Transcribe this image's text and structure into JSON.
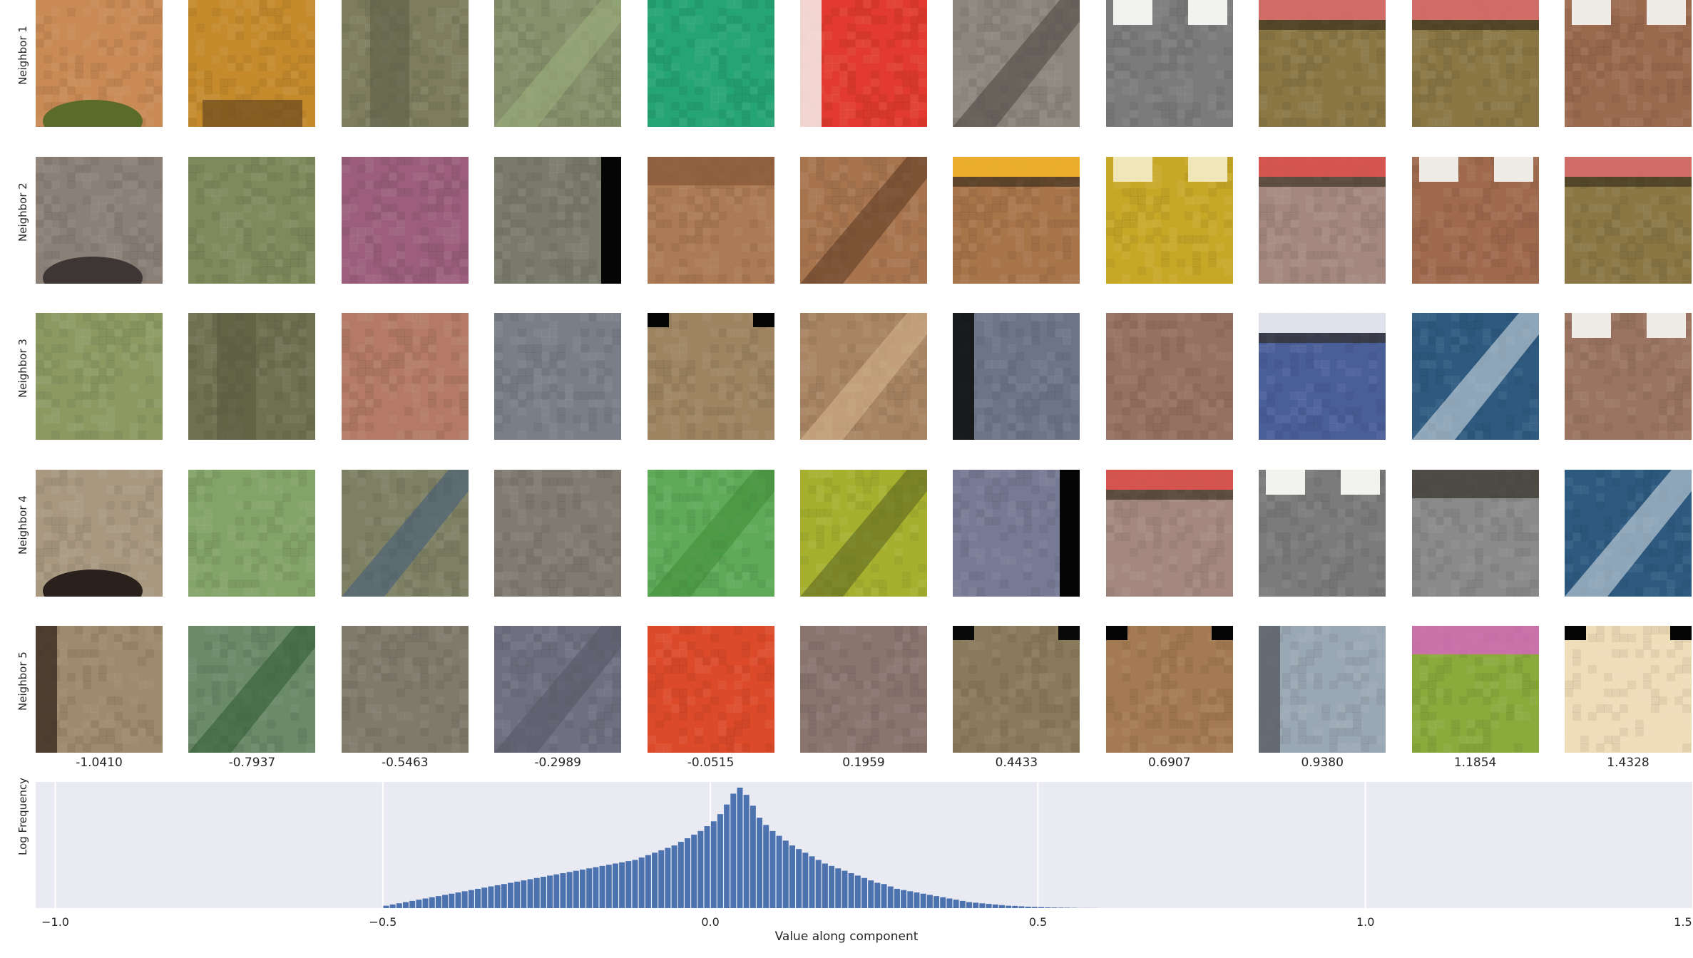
{
  "chart_data": [
    {
      "type": "image-grid",
      "row_labels": [
        "Neighbor 1",
        "Neighbor 2",
        "Neighbor 3",
        "Neighbor 4",
        "Neighbor 5"
      ],
      "column_values": [
        "-1.0410",
        "-0.7937",
        "-0.5463",
        "-0.2989",
        "-0.0515",
        "0.1959",
        "0.4433",
        "0.6907",
        "0.9380",
        "1.1854",
        "1.4328"
      ],
      "patches": [
        [
          {
            "bg": "#c98a55",
            "accent": "#5a6b2a",
            "pattern": "bottom-blob"
          },
          {
            "bg": "#c48a2c",
            "accent": "#6b4a20",
            "pattern": "bottom-band"
          },
          {
            "bg": "#7d7d5e",
            "accent": "#5f5f48",
            "pattern": "vertical"
          },
          {
            "bg": "#86906a",
            "accent": "#9ab07c",
            "pattern": "diagonal"
          },
          {
            "bg": "#25a475",
            "accent": "#1e9068",
            "pattern": "plain"
          },
          {
            "bg": "#e23a2e",
            "accent": "#f6f1ee",
            "pattern": "left-band"
          },
          {
            "bg": "#8c857c",
            "accent": "#4a4540",
            "pattern": "diagonal"
          },
          {
            "bg": "#7b7b7b",
            "accent": "#f2f2ee",
            "pattern": "top-blocks"
          },
          {
            "bg": "#8b7744",
            "accent": "#d86b6b",
            "pattern": "top-stripe"
          },
          {
            "bg": "#8b7744",
            "accent": "#d86b6b",
            "pattern": "top-stripe"
          },
          {
            "bg": "#9a6a4e",
            "accent": "#efece8",
            "pattern": "top-blocks"
          }
        ],
        [
          {
            "bg": "#8b8078",
            "accent": "#3e3634",
            "pattern": "bottom-blob"
          },
          {
            "bg": "#7f8a5c",
            "accent": "#e3e3d0",
            "pattern": "plain"
          },
          {
            "bg": "#9c5e7c",
            "accent": "#b0607e",
            "pattern": "plain"
          },
          {
            "bg": "#7a7a6c",
            "accent": "#050505",
            "pattern": "right-bar"
          },
          {
            "bg": "#ac7a54",
            "accent": "#8b5a3a",
            "pattern": "top-band"
          },
          {
            "bg": "#a8744e",
            "accent": "#5a3822",
            "pattern": "diagonal"
          },
          {
            "bg": "#a8744a",
            "accent": "#f2b428",
            "pattern": "top-stripe"
          },
          {
            "bg": "#c7a826",
            "accent": "#efe7b8",
            "pattern": "top-blocks"
          },
          {
            "bg": "#a48880",
            "accent": "#d9504a",
            "pattern": "top-stripe"
          },
          {
            "bg": "#a06a4e",
            "accent": "#efece8",
            "pattern": "top-blocks"
          },
          {
            "bg": "#8b7744",
            "accent": "#d86b6b",
            "pattern": "top-stripe"
          }
        ],
        [
          {
            "bg": "#8c9a62",
            "accent": "#9aa870",
            "pattern": "plain"
          },
          {
            "bg": "#6e7050",
            "accent": "#5a5c40",
            "pattern": "vertical"
          },
          {
            "bg": "#b47a66",
            "accent": "#9e6050",
            "pattern": "plain"
          },
          {
            "bg": "#7a7e88",
            "accent": "#8e929c",
            "pattern": "plain"
          },
          {
            "bg": "#9e8460",
            "accent": "#050505",
            "pattern": "corner-black"
          },
          {
            "bg": "#a88462",
            "accent": "#d8b890",
            "pattern": "diagonal"
          },
          {
            "bg": "#6c7488",
            "accent": "#0a0a0a",
            "pattern": "left-band"
          },
          {
            "bg": "#967060",
            "accent": "#7e5a4c",
            "pattern": "plain"
          },
          {
            "bg": "#4a5e98",
            "accent": "#f0f0f4",
            "pattern": "top-stripe"
          },
          {
            "bg": "#2e5a80",
            "accent": "#dfe6ea",
            "pattern": "diagonal"
          },
          {
            "bg": "#9a7460",
            "accent": "#efece8",
            "pattern": "top-blocks"
          }
        ],
        [
          {
            "bg": "#a89880",
            "accent": "#2a201c",
            "pattern": "bottom-blob"
          },
          {
            "bg": "#82a468",
            "accent": "#a6c88a",
            "pattern": "plain"
          },
          {
            "bg": "#7e8064",
            "accent": "#3e5a7a",
            "pattern": "diagonal"
          },
          {
            "bg": "#807a70",
            "accent": "#8a847a",
            "pattern": "plain"
          },
          {
            "bg": "#5eaa58",
            "accent": "#3e8a38",
            "pattern": "diagonal"
          },
          {
            "bg": "#a6b02e",
            "accent": "#556020",
            "pattern": "diagonal"
          },
          {
            "bg": "#767a94",
            "accent": "#050505",
            "pattern": "right-bar"
          },
          {
            "bg": "#a48880",
            "accent": "#d9504a",
            "pattern": "top-stripe"
          },
          {
            "bg": "#7b7b7b",
            "accent": "#f2f2ee",
            "pattern": "top-blocks"
          },
          {
            "bg": "#8a8a8a",
            "accent": "#3e3a32",
            "pattern": "top-band"
          },
          {
            "bg": "#2e5a80",
            "accent": "#dfe6ea",
            "pattern": "diagonal"
          }
        ],
        [
          {
            "bg": "#9e8a6c",
            "accent": "#3e3026",
            "pattern": "left-band"
          },
          {
            "bg": "#6a8a68",
            "accent": "#2e5a32",
            "pattern": "diagonal"
          },
          {
            "bg": "#807a6c",
            "accent": "#8a8476",
            "pattern": "plain"
          },
          {
            "bg": "#6e7080",
            "accent": "#565866",
            "pattern": "diagonal"
          },
          {
            "bg": "#dc4a2a",
            "accent": "#e86a4a",
            "pattern": "plain"
          },
          {
            "bg": "#8a746e",
            "accent": "#9a7e78",
            "pattern": "plain"
          },
          {
            "bg": "#8a7a5c",
            "accent": "#0a0a0a",
            "pattern": "corner-black"
          },
          {
            "bg": "#a47a52",
            "accent": "#050505",
            "pattern": "corner-black"
          },
          {
            "bg": "#9aa8b4",
            "accent": "#5a6068",
            "pattern": "left-band"
          },
          {
            "bg": "#8aaa3c",
            "accent": "#d864c4",
            "pattern": "top-band"
          },
          {
            "bg": "#efdcb8",
            "accent": "#050505",
            "pattern": "corner-black"
          }
        ]
      ]
    },
    {
      "type": "bar",
      "title": "",
      "xlabel": "Value along component",
      "ylabel": "Log Frequency",
      "xlim": [
        -1.03,
        1.5
      ],
      "xticks": [
        -1.0,
        -0.5,
        0.0,
        0.5,
        1.0,
        1.5
      ],
      "xtick_labels": [
        "−1.0",
        "−0.5",
        "0.0",
        "0.5",
        "1.0",
        "1.5"
      ],
      "bar_color": "#4c72b0",
      "background": "#eaeaf2",
      "grid": true,
      "bin_width": 0.01,
      "bin_start": -0.5,
      "values": [
        0.02,
        0.03,
        0.04,
        0.05,
        0.06,
        0.07,
        0.08,
        0.09,
        0.1,
        0.11,
        0.12,
        0.13,
        0.14,
        0.15,
        0.16,
        0.17,
        0.18,
        0.19,
        0.2,
        0.21,
        0.22,
        0.23,
        0.24,
        0.25,
        0.26,
        0.27,
        0.28,
        0.29,
        0.3,
        0.31,
        0.32,
        0.33,
        0.34,
        0.35,
        0.36,
        0.37,
        0.38,
        0.39,
        0.4,
        0.42,
        0.44,
        0.46,
        0.48,
        0.5,
        0.52,
        0.55,
        0.58,
        0.61,
        0.64,
        0.68,
        0.72,
        0.78,
        0.86,
        0.95,
        1.0,
        0.94,
        0.85,
        0.75,
        0.69,
        0.64,
        0.6,
        0.56,
        0.52,
        0.49,
        0.46,
        0.43,
        0.4,
        0.37,
        0.35,
        0.33,
        0.31,
        0.29,
        0.27,
        0.25,
        0.23,
        0.21,
        0.2,
        0.18,
        0.16,
        0.15,
        0.14,
        0.13,
        0.12,
        0.11,
        0.1,
        0.09,
        0.08,
        0.07,
        0.06,
        0.05,
        0.045,
        0.04,
        0.035,
        0.03,
        0.025,
        0.02,
        0.018,
        0.015,
        0.012,
        0.01,
        0.008,
        0.006,
        0.005,
        0.004,
        0.003,
        0.002,
        0.001,
        0.001,
        0.001
      ]
    }
  ]
}
